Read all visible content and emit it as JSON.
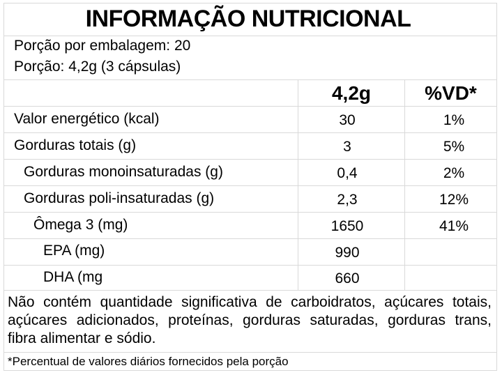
{
  "title": "INFORMAÇÃO NUTRICIONAL",
  "serving": {
    "per_package": "Porção por embalagem: 20",
    "portion": "Porção: 4,2g (3 cápsulas)"
  },
  "columns": {
    "amount": "4,2g",
    "dv": "%VD*"
  },
  "rows": [
    {
      "label": "Valor energético (kcal)",
      "amount": "30",
      "dv": "1%"
    },
    {
      "label": "Gorduras totais (g)",
      "amount": "3",
      "dv": "5%"
    },
    {
      "label": "Gorduras monoinsaturadas (g)",
      "amount": "0,4",
      "dv": "2%"
    },
    {
      "label": "Gorduras poli-insaturadas (g)",
      "amount": "2,3",
      "dv": "12%"
    },
    {
      "label": "Ômega 3 (mg)",
      "amount": "1650",
      "dv": "41%"
    },
    {
      "label": "EPA (mg)",
      "amount": "990",
      "dv": ""
    },
    {
      "label": "DHA (mg",
      "amount": "660",
      "dv": ""
    }
  ],
  "note": "Não contém quantidade significativa de carboidratos, açúcares totais, açúcares adicionados, proteínas, gorduras saturadas, gorduras trans, fibra alimentar e sódio.",
  "footnote": "*Percentual de valores diários fornecidos pela porção"
}
